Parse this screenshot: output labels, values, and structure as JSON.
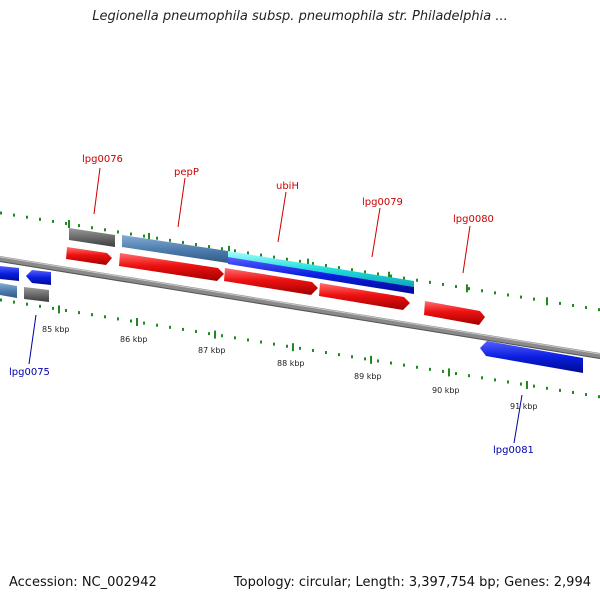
{
  "title": "Legionella pneumophila subsp. pneumophila str. Philadelphia ...",
  "footer": {
    "accession": "Accession: NC_002942",
    "topology": "Topology: circular; Length: 3,397,754 bp; Genes: 2,994"
  },
  "scale_labels": [
    "85 kbp",
    "86 kbp",
    "87 kbp",
    "88 kbp",
    "89 kbp",
    "90 kbp",
    "91 kbp"
  ],
  "gene_labels": [
    {
      "text": "lpg0076",
      "color": "#cc0000"
    },
    {
      "text": "pepP",
      "color": "#cc0000"
    },
    {
      "text": "ubiH",
      "color": "#cc0000"
    },
    {
      "text": "lpg0079",
      "color": "#cc0000"
    },
    {
      "text": "lpg0080",
      "color": "#cc0000"
    },
    {
      "text": "lpg0075",
      "color": "#0000aa"
    },
    {
      "text": "lpg0081",
      "color": "#0000aa"
    }
  ],
  "colors": {
    "forward_gene": "#ee1111",
    "reverse_gene": "#0a1ee0",
    "gray_feature": "#6b6b6b",
    "steelblue_feature": "#4f7fb0",
    "cyan_feature": "#22dddd",
    "backbone": "#808080",
    "tick": "#228822"
  }
}
